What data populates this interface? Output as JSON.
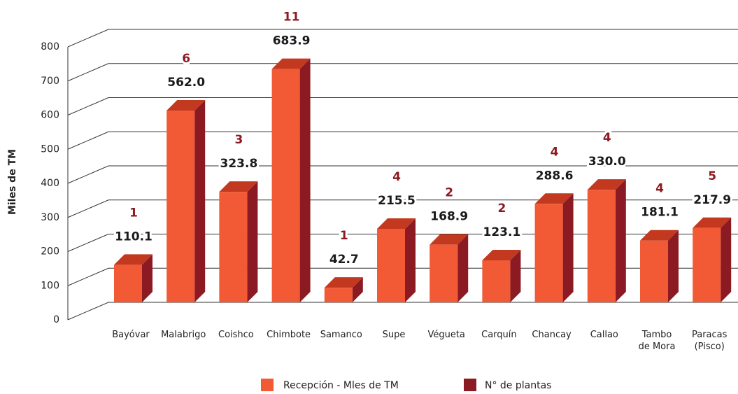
{
  "chart_data": {
    "type": "bar3d",
    "y_label": "Miles de TM",
    "categories": [
      "Bayóvar",
      "Malabrigo",
      "Coishco",
      "Chimbote",
      "Samanco",
      "Supe",
      "Végueta",
      "Carquín",
      "Chancay",
      "Callao",
      "Tambo\nde Mora",
      "Paracas\n(Pisco)"
    ],
    "series": [
      {
        "name": "Recepción - Mles de TM",
        "color": "#f15a35",
        "values": [
          110.1,
          562.0,
          323.8,
          683.9,
          42.7,
          215.5,
          168.9,
          123.1,
          288.6,
          330.0,
          181.1,
          217.9
        ],
        "value_labels": [
          "110.1",
          "562.0",
          "323.8",
          "683.9",
          "42.7",
          "215.5",
          "168.9",
          "123.1",
          "288.6",
          "330.0",
          "181.1",
          "217.9"
        ]
      },
      {
        "name": "N° de plantas",
        "color": "#8b1a22",
        "values": [
          1,
          6,
          3,
          11,
          1,
          4,
          2,
          2,
          4,
          4,
          4,
          5
        ]
      }
    ],
    "ylim": [
      0,
      800
    ],
    "yticks": [
      0,
      100,
      200,
      300,
      400,
      500,
      600,
      700,
      800
    ],
    "grid": true
  }
}
